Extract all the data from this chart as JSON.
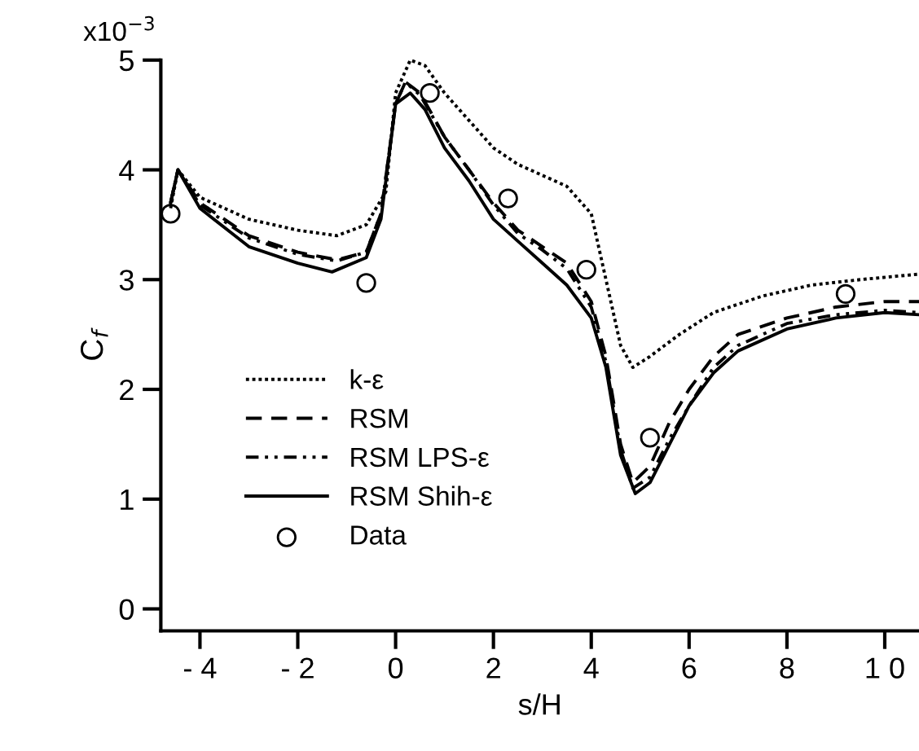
{
  "chart_data": {
    "type": "line",
    "xlabel": "s/H",
    "ylabel": "C$_{f}$",
    "xlim": [
      -4.8,
      10.7
    ],
    "ylim": [
      -0.2,
      5.0
    ],
    "xticks": [
      {
        "value": -4,
        "label": "- 4"
      },
      {
        "value": -2,
        "label": "- 2"
      },
      0,
      2,
      4,
      6,
      8,
      {
        "value": 10,
        "label": "1 0"
      }
    ],
    "yticks": [
      0,
      1,
      2,
      3,
      4,
      5
    ],
    "annotations": [
      "x10$^{−3}$"
    ],
    "grid": false,
    "legend": "center left",
    "series": [
      {
        "name": "k-ε",
        "color": "#000000",
        "line_style": "dotted",
        "x": [
          -4.6,
          -4.45,
          -4,
          -3,
          -2,
          -1.2,
          -0.6,
          -0.2,
          0,
          0.3,
          0.6,
          1,
          1.5,
          2,
          2.5,
          3,
          3.5,
          4,
          4.3,
          4.6,
          4.85,
          5.2,
          5.8,
          6.5,
          7.5,
          8.5,
          9.5,
          10.7
        ],
        "values": [
          3.65,
          4.0,
          3.75,
          3.55,
          3.45,
          3.4,
          3.5,
          3.8,
          4.7,
          5.0,
          4.95,
          4.7,
          4.45,
          4.2,
          4.05,
          3.95,
          3.85,
          3.6,
          3.0,
          2.4,
          2.2,
          2.3,
          2.5,
          2.7,
          2.85,
          2.95,
          3.0,
          3.05
        ]
      },
      {
        "name": "RSM",
        "color": "#000000",
        "line_style": "dashed",
        "x": [
          -4.6,
          -4.45,
          -4,
          -3,
          -2,
          -1.2,
          -0.6,
          -0.3,
          0,
          0.2,
          0.5,
          1,
          1.5,
          2,
          2.5,
          3,
          3.5,
          4,
          4.3,
          4.6,
          4.85,
          5.2,
          5.6,
          6,
          6.5,
          7,
          8,
          9,
          10,
          10.7
        ],
        "values": [
          3.7,
          4.0,
          3.7,
          3.4,
          3.25,
          3.18,
          3.25,
          3.6,
          4.6,
          4.8,
          4.7,
          4.3,
          4.0,
          3.7,
          3.45,
          3.3,
          3.15,
          2.8,
          2.3,
          1.5,
          1.15,
          1.3,
          1.7,
          2.0,
          2.3,
          2.5,
          2.65,
          2.75,
          2.8,
          2.8
        ]
      },
      {
        "name": "RSM LPS-ε",
        "color": "#000000",
        "line_style": "dashdot",
        "x": [
          -4.6,
          -4.45,
          -4,
          -3,
          -2,
          -1.2,
          -0.6,
          -0.3,
          0,
          0.2,
          0.5,
          1,
          1.5,
          2,
          2.5,
          3,
          3.5,
          4,
          4.3,
          4.6,
          4.85,
          5.2,
          5.6,
          6,
          6.5,
          7,
          8,
          9,
          10,
          10.7
        ],
        "values": [
          3.7,
          4.0,
          3.68,
          3.38,
          3.23,
          3.17,
          3.25,
          3.6,
          4.6,
          4.8,
          4.68,
          4.3,
          4.0,
          3.68,
          3.42,
          3.27,
          3.1,
          2.75,
          2.25,
          1.45,
          1.1,
          1.2,
          1.55,
          1.85,
          2.2,
          2.4,
          2.6,
          2.68,
          2.72,
          2.7
        ]
      },
      {
        "name": "RSM Shih-ε",
        "color": "#000000",
        "line_style": "solid",
        "x": [
          -4.6,
          -4.45,
          -4,
          -3,
          -2,
          -1.3,
          -0.6,
          -0.3,
          0,
          0.3,
          0.6,
          1,
          1.5,
          2,
          2.5,
          3,
          3.5,
          4,
          4.3,
          4.6,
          4.9,
          5.2,
          5.6,
          6,
          6.5,
          7,
          8,
          9,
          10,
          10.7
        ],
        "values": [
          3.7,
          4.0,
          3.65,
          3.3,
          3.15,
          3.07,
          3.2,
          3.55,
          4.6,
          4.7,
          4.55,
          4.2,
          3.9,
          3.55,
          3.35,
          3.15,
          2.95,
          2.65,
          2.2,
          1.4,
          1.05,
          1.15,
          1.5,
          1.85,
          2.15,
          2.35,
          2.55,
          2.65,
          2.7,
          2.68
        ]
      },
      {
        "name": "Data",
        "type": "scatter",
        "marker": "circle",
        "color": "#000000",
        "x": [
          -4.6,
          -0.6,
          0.7,
          2.3,
          3.9,
          5.2,
          9.2
        ],
        "values": [
          3.6,
          2.97,
          4.7,
          3.74,
          3.09,
          1.56,
          2.87
        ]
      }
    ]
  }
}
